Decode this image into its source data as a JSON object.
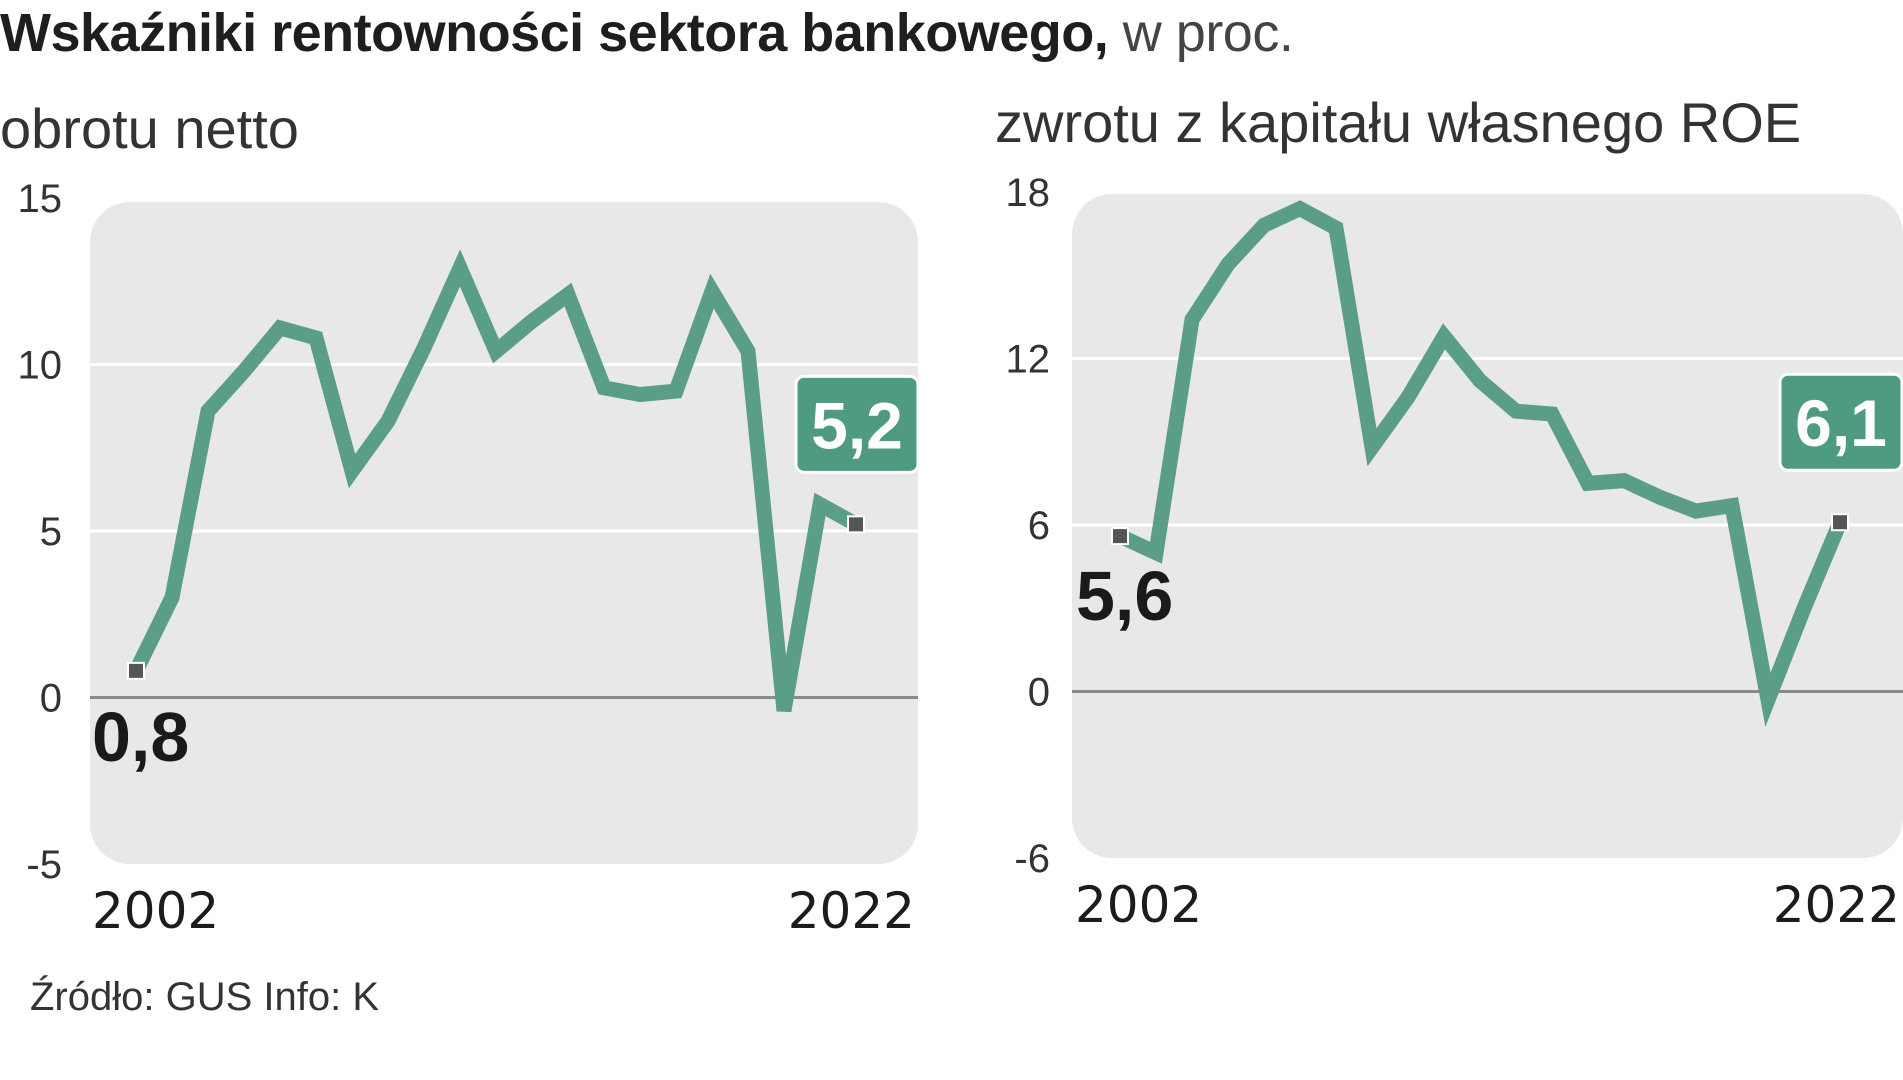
{
  "title": {
    "bold": "Wskaźniki rentowności sektora bankowego,",
    "light": " w proc."
  },
  "source": "Źródło: GUS   Info: K",
  "colors": {
    "line": "#5a9e89",
    "panel": "#e8e8e8",
    "label_bg": "#4f9a82",
    "marker": "#555555",
    "zero_line": "#8a8a8a",
    "grid": "#ffffff"
  },
  "chart_data": [
    {
      "type": "line",
      "title": "obrotu netto",
      "x": [
        2002,
        2003,
        2004,
        2005,
        2006,
        2007,
        2008,
        2009,
        2010,
        2011,
        2012,
        2013,
        2014,
        2015,
        2016,
        2017,
        2018,
        2019,
        2020,
        2021,
        2022
      ],
      "values": [
        0.8,
        3.0,
        8.6,
        9.8,
        11.1,
        10.8,
        6.8,
        8.3,
        10.5,
        12.9,
        10.4,
        11.3,
        12.1,
        9.3,
        9.1,
        9.2,
        12.2,
        10.4,
        -0.4,
        5.8,
        5.2
      ],
      "ylim": [
        -5,
        15
      ],
      "yticks": [
        "15",
        "10",
        "5",
        "0",
        "-5"
      ],
      "ytick_values": [
        15,
        10,
        5,
        0,
        -5
      ],
      "x_start_label": "2002",
      "x_end_label": "2022",
      "start_label": "0,8",
      "end_label": "5,2"
    },
    {
      "type": "line",
      "title": "zwrotu z kapitału własnego ROE",
      "x": [
        2002,
        2003,
        2004,
        2005,
        2006,
        2007,
        2008,
        2009,
        2010,
        2011,
        2012,
        2013,
        2014,
        2015,
        2016,
        2017,
        2018,
        2019,
        2020,
        2021,
        2022
      ],
      "values": [
        5.6,
        5.0,
        13.4,
        15.4,
        16.8,
        17.4,
        16.7,
        8.8,
        10.6,
        12.8,
        11.2,
        10.1,
        10.0,
        7.5,
        7.6,
        7.0,
        6.5,
        6.7,
        -0.3,
        3.0,
        6.1
      ],
      "ylim": [
        -6,
        18
      ],
      "yticks": [
        "18",
        "12",
        "6",
        "0",
        "-6"
      ],
      "ytick_values": [
        18,
        12,
        6,
        0,
        -6
      ],
      "x_start_label": "2002",
      "x_end_label": "2022",
      "start_label": "5,6",
      "end_label": "6,1"
    }
  ]
}
